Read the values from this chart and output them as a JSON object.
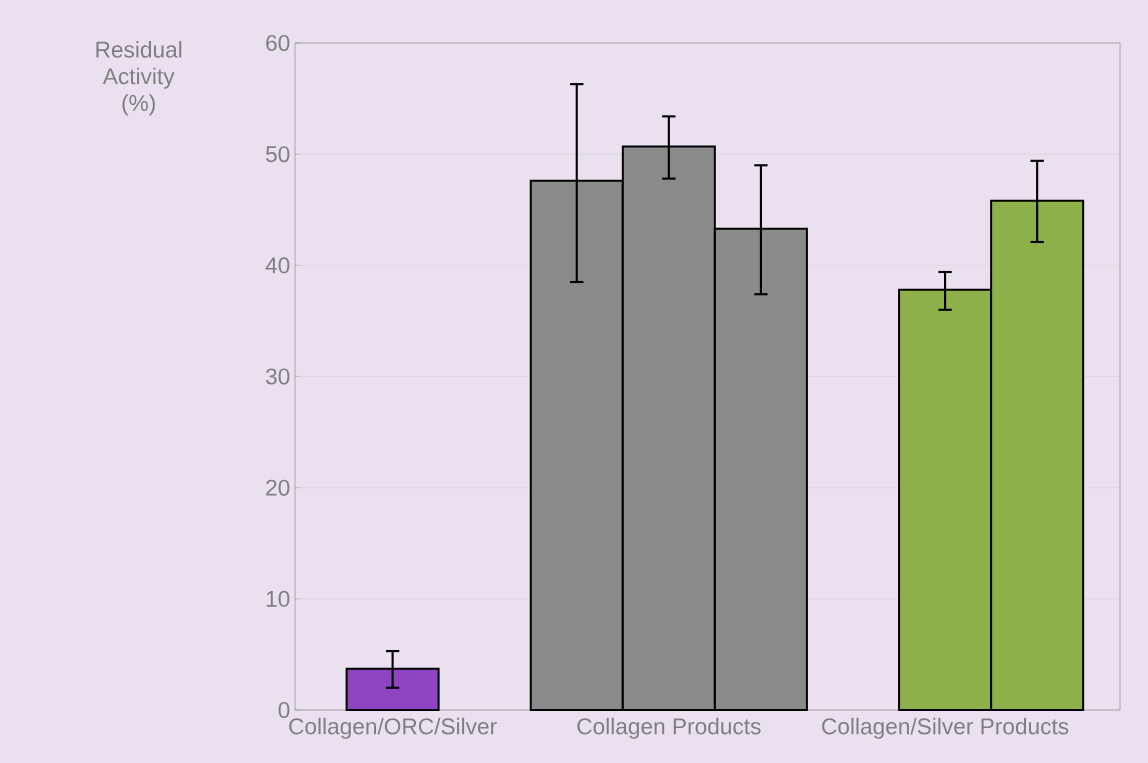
{
  "chart_data": {
    "type": "bar",
    "ylabel": "Residual Activity (%)",
    "categories": [
      "Collagen/ORC/Silver",
      null,
      null,
      "Collagen Products",
      null,
      null,
      "Collagen/Silver Products",
      null
    ],
    "values": [
      3.7,
      null,
      47.6,
      50.7,
      43.3,
      null,
      37.8,
      45.8
    ],
    "errors": [
      [
        2.0,
        5.3
      ],
      null,
      [
        38.5,
        56.3
      ],
      [
        47.8,
        53.4
      ],
      [
        37.4,
        49.0
      ],
      null,
      [
        36.0,
        39.4
      ],
      [
        42.1,
        49.4
      ]
    ],
    "colors": [
      "#8e44c0",
      null,
      "#8a8a8a",
      "#8a8a8a",
      "#8a8a8a",
      null,
      "#8db04a",
      "#8db04a"
    ],
    "ylim": [
      0,
      60
    ],
    "yticks": [
      0,
      10,
      20,
      30,
      40,
      50,
      60
    ],
    "grid": "y"
  }
}
